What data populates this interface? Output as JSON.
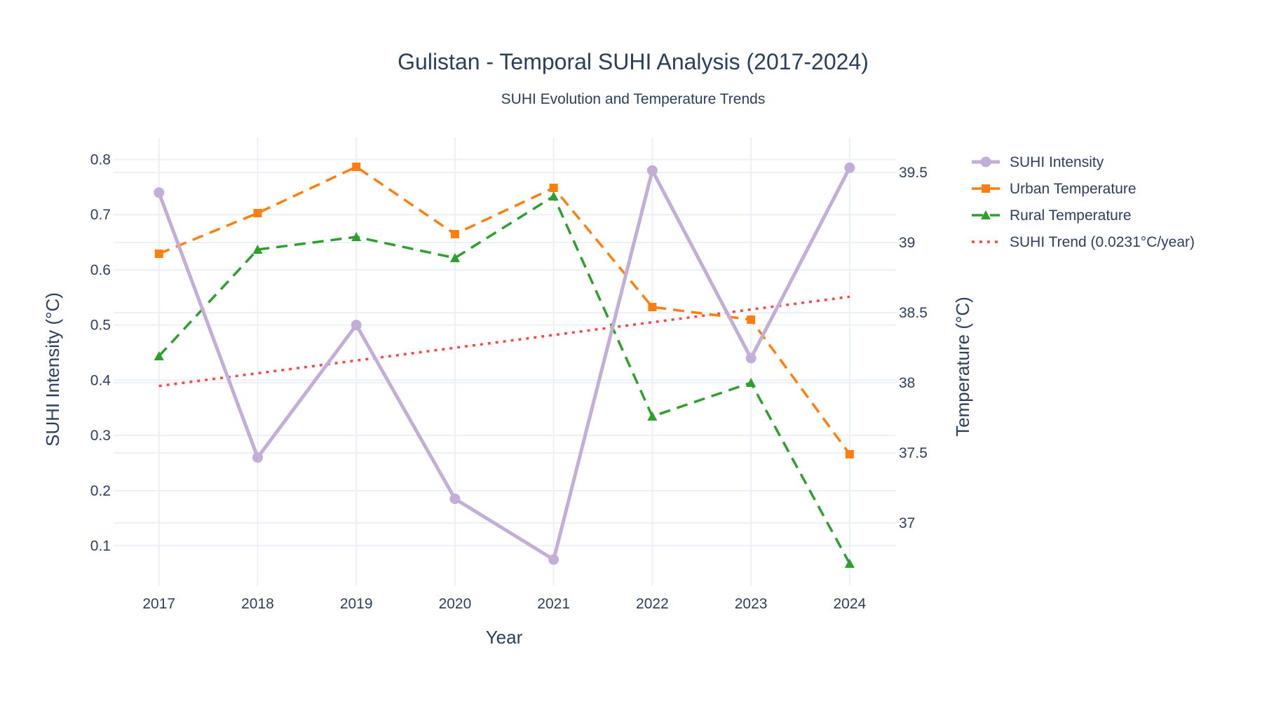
{
  "chart_data": {
    "type": "line",
    "title": "Gulistan - Temporal SUHI Analysis (2017-2024)",
    "subtitle": "SUHI Evolution and Temperature Trends",
    "xlabel": "Year",
    "ylabel": "SUHI Intensity (°C)",
    "y2label": "Temperature (°C)",
    "x": [
      2017,
      2018,
      2019,
      2020,
      2021,
      2022,
      2023,
      2024
    ],
    "x_ticks": [
      "2017",
      "2018",
      "2019",
      "2020",
      "2021",
      "2022",
      "2023",
      "2024"
    ],
    "y_ticks": [
      "0.1",
      "0.2",
      "0.3",
      "0.4",
      "0.5",
      "0.6",
      "0.7",
      "0.8"
    ],
    "y2_ticks": [
      "37",
      "37.5",
      "38",
      "38.5",
      "39",
      "39.5"
    ],
    "y_tick_values": [
      0.1,
      0.2,
      0.3,
      0.4,
      0.5,
      0.6,
      0.7,
      0.8
    ],
    "y2_tick_values": [
      37,
      37.5,
      38,
      38.5,
      39,
      39.5
    ],
    "xlim": [
      2016.54,
      2024.47
    ],
    "ylim": [
      0.027,
      0.84
    ],
    "y2lim": [
      36.55,
      39.75
    ],
    "grid": true,
    "legend_position": "top-right outside",
    "series": [
      {
        "name": "SUHI Intensity",
        "axis": "y",
        "color": "#c2aed6",
        "marker": "circle",
        "dash": "solid",
        "values": [
          0.74,
          0.26,
          0.5,
          0.185,
          0.075,
          0.78,
          0.44,
          0.785
        ]
      },
      {
        "name": "Urban Temperature",
        "axis": "y2",
        "color": "#ff7f0e",
        "marker": "square",
        "dash": "dash",
        "values": [
          38.92,
          39.21,
          39.54,
          39.06,
          39.39,
          38.54,
          38.45,
          37.49
        ]
      },
      {
        "name": "Rural Temperature",
        "axis": "y2",
        "color": "#2ca02c",
        "marker": "triangle",
        "dash": "dash",
        "values": [
          38.19,
          38.95,
          39.04,
          38.89,
          39.33,
          37.76,
          38.0,
          36.71
        ]
      },
      {
        "name": "SUHI Trend (0.0231°C/year)",
        "axis": "y",
        "color": "#ff4444",
        "marker": "none",
        "dash": "dot",
        "values": [
          0.3895,
          0.4126,
          0.4357,
          0.4588,
          0.4819,
          0.505,
          0.5281,
          0.5512
        ]
      }
    ]
  }
}
